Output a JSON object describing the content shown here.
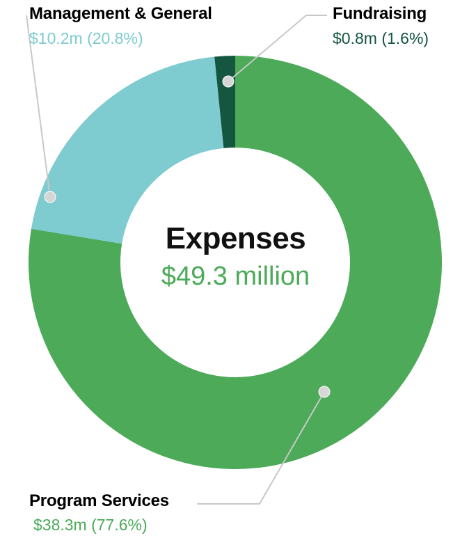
{
  "chart_data": {
    "type": "pie",
    "style": "donut",
    "center_title": "Expenses",
    "center_value": "$49.3 million",
    "center_value_color": "#4caa58",
    "slices": [
      {
        "name": "Program Services",
        "amount": 38.3,
        "percent": 77.6,
        "value_label": "$38.3m (77.6%)",
        "color": "#4caa58",
        "label_color": "#4caa58"
      },
      {
        "name": "Management & General",
        "amount": 10.2,
        "percent": 20.8,
        "value_label": "$10.2m (20.8%)",
        "color": "#7ecbd0",
        "label_color": "#7ecbd0"
      },
      {
        "name": "Fundraising",
        "amount": 0.8,
        "percent": 1.6,
        "value_label": "$0.8m (1.6%)",
        "color": "#14563f",
        "label_color": "#14563f"
      }
    ],
    "legend": "callouts",
    "leader_line_color": "#c8c8c8"
  }
}
